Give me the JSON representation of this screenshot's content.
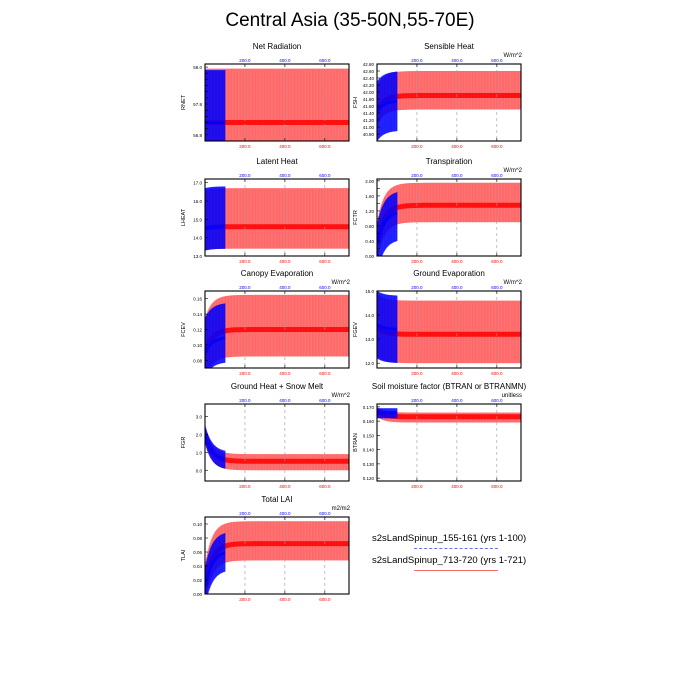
{
  "figure": {
    "title": "Central Asia (35-50N,55-70E)"
  },
  "colors": {
    "run1": "#0000ff",
    "run2": "#ff0000"
  },
  "legend": {
    "entries": [
      {
        "label": "s2sLandSpinup_155-161 (yrs 1-100)",
        "color": "#0000ff",
        "style": "dashed"
      },
      {
        "label": "s2sLandSpinup_713-720 (yrs 1-721)",
        "color": "#ff0000",
        "style": "solid"
      }
    ]
  },
  "chart_data": [
    {
      "type": "line",
      "title": "Net Radiation",
      "ylabel": "RNET",
      "units": "",
      "top_axis": {
        "ticks": [
          200,
          400,
          600
        ],
        "labels": [
          "200.0",
          "400.0",
          "600.0"
        ]
      },
      "bottom_axis": {
        "ticks": [
          200,
          400,
          600
        ],
        "labels": [
          "200.0",
          "400.0",
          "600.0"
        ]
      },
      "xlim": [
        0,
        721
      ],
      "ylim": [
        56.6,
        59.1
      ],
      "yticks": [
        56.8,
        57.0,
        57.2,
        57.4,
        57.6,
        57.8,
        58.0,
        58.2,
        58.4,
        58.6,
        58.8,
        59.0
      ],
      "ytick_labels": [
        "56.8",
        "",
        "",
        "",
        "",
        "57.8",
        "",
        "",
        "",
        "",
        "",
        "59.0"
      ],
      "grid_x": true,
      "series": [
        {
          "name": "s2sLandSpinup_155-161 (yrs 1-100)",
          "color": "#0000ff",
          "start_year": 1,
          "end_year": 100,
          "annual_mean": 57.2,
          "start_mean": 57.2,
          "seasonal_max": 58.9,
          "seasonal_min": 56.6
        },
        {
          "name": "s2sLandSpinup_713-720 (yrs 1-721)",
          "color": "#ff0000",
          "start_year": 1,
          "end_year": 721,
          "annual_mean": 57.2,
          "start_mean": 57.2,
          "seasonal_max": 58.95,
          "seasonal_min": 56.6
        }
      ]
    },
    {
      "type": "line",
      "title": "Sensible Heat",
      "ylabel": "FSH",
      "units": "W/m^2",
      "top_axis": {
        "ticks": [
          200,
          400,
          600
        ],
        "labels": [
          "200.0",
          "400.0",
          "600.0"
        ]
      },
      "bottom_axis": {
        "ticks": [
          200,
          400,
          600
        ],
        "labels": [
          "200.0",
          "400.0",
          "600.0"
        ]
      },
      "xlim": [
        0,
        721
      ],
      "ylim": [
        40.6,
        42.8
      ],
      "yticks": [
        40.8,
        41.0,
        41.2,
        41.4,
        41.6,
        41.8,
        42.0,
        42.2,
        42.4,
        42.6,
        42.8
      ],
      "ytick_labels": [
        "40.80",
        "41.00",
        "41.20",
        "41.40",
        "41.60",
        "41.80",
        "42.00",
        "42.20",
        "42.40",
        "42.60",
        "42.80"
      ],
      "grid_x": true,
      "series": [
        {
          "name": "s2sLandSpinup_155-161 (yrs 1-100)",
          "color": "#0000ff",
          "start_year": 1,
          "end_year": 100,
          "annual_mean": 41.75,
          "start_mean": 41.45,
          "seasonal_max": 42.6,
          "seasonal_min": 40.9
        },
        {
          "name": "s2sLandSpinup_713-720 (yrs 1-721)",
          "color": "#ff0000",
          "start_year": 1,
          "end_year": 721,
          "annual_mean": 41.9,
          "start_mean": 41.45,
          "seasonal_max": 42.6,
          "seasonal_min": 41.5
        }
      ]
    },
    {
      "type": "line",
      "title": "Latent Heat",
      "ylabel": "LHEAT",
      "units": "",
      "top_axis": {
        "ticks": [
          200,
          400,
          600
        ],
        "labels": [
          "200.0",
          "400.0",
          "600.0"
        ]
      },
      "bottom_axis": {
        "ticks": [
          200,
          400,
          600
        ],
        "labels": [
          "200.0",
          "400.0",
          "600.0"
        ]
      },
      "xlim": [
        0,
        721
      ],
      "ylim": [
        13.0,
        17.2
      ],
      "yticks": [
        13.0,
        14.0,
        15.0,
        16.0,
        17.0
      ],
      "ytick_labels": [
        "13.0",
        "14.0",
        "15.0",
        "16.0",
        "17.0"
      ],
      "grid_x": true,
      "series": [
        {
          "name": "s2sLandSpinup_155-161 (yrs 1-100)",
          "color": "#0000ff",
          "start_year": 1,
          "end_year": 100,
          "annual_mean": 14.6,
          "start_mean": 14.5,
          "seasonal_max": 16.8,
          "seasonal_min": 13.4
        },
        {
          "name": "s2sLandSpinup_713-720 (yrs 1-721)",
          "color": "#ff0000",
          "start_year": 1,
          "end_year": 721,
          "annual_mean": 14.6,
          "start_mean": 14.5,
          "seasonal_max": 16.7,
          "seasonal_min": 13.4
        }
      ]
    },
    {
      "type": "line",
      "title": "Transpiration",
      "ylabel": "FCTR",
      "units": "W/m^2",
      "top_axis": {
        "ticks": [
          200,
          400,
          600
        ],
        "labels": [
          "200.0",
          "400.0",
          "600.0"
        ]
      },
      "bottom_axis": {
        "ticks": [
          200,
          400,
          600
        ],
        "labels": [
          "200.0",
          "400.0",
          "600.0"
        ]
      },
      "xlim": [
        0,
        721
      ],
      "ylim": [
        0.0,
        2.05
      ],
      "yticks": [
        0.0,
        0.2,
        0.4,
        0.6,
        0.8,
        1.0,
        1.2,
        1.4,
        1.6,
        1.8,
        2.0
      ],
      "ytick_labels": [
        "0.00",
        "0.40",
        "0.80",
        "1.20",
        "1.60",
        "2.00"
      ],
      "ytick_label_values": [
        0.0,
        0.4,
        0.8,
        1.2,
        1.6,
        2.0
      ],
      "grid_x": true,
      "series": [
        {
          "name": "s2sLandSpinup_155-161 (yrs 1-100)",
          "color": "#0000ff",
          "start_year": 1,
          "end_year": 100,
          "annual_mean": 1.2,
          "start_mean": 0.3,
          "seasonal_max": 1.75,
          "seasonal_min": 0.45
        },
        {
          "name": "s2sLandSpinup_713-720 (yrs 1-721)",
          "color": "#ff0000",
          "start_year": 1,
          "end_year": 721,
          "annual_mean": 1.35,
          "start_mean": 0.3,
          "seasonal_max": 1.95,
          "seasonal_min": 0.9
        }
      ]
    },
    {
      "type": "line",
      "title": "Canopy Evaporation",
      "ylabel": "FCEV",
      "units": "W/m^2",
      "top_axis": {
        "ticks": [
          200,
          400,
          600
        ],
        "labels": [
          "200.0",
          "400.0",
          "600.0"
        ]
      },
      "bottom_axis": {
        "ticks": [
          200,
          400,
          600
        ],
        "labels": [
          "200.0",
          "400.0",
          "600.0"
        ]
      },
      "xlim": [
        0,
        721
      ],
      "ylim": [
        0.07,
        0.17
      ],
      "yticks": [
        0.08,
        0.1,
        0.12,
        0.14,
        0.16
      ],
      "ytick_labels": [
        "0.08",
        "0.10",
        "0.12",
        "0.14",
        "0.16"
      ],
      "grid_x": true,
      "series": [
        {
          "name": "s2sLandSpinup_155-161 (yrs 1-100)",
          "color": "#0000ff",
          "start_year": 1,
          "end_year": 100,
          "annual_mean": 0.11,
          "start_mean": 0.09,
          "seasonal_max": 0.155,
          "seasonal_min": 0.078
        },
        {
          "name": "s2sLandSpinup_713-720 (yrs 1-721)",
          "color": "#ff0000",
          "start_year": 1,
          "end_year": 721,
          "annual_mean": 0.12,
          "start_mean": 0.09,
          "seasonal_max": 0.165,
          "seasonal_min": 0.085
        }
      ]
    },
    {
      "type": "line",
      "title": "Ground Evaporation",
      "ylabel": "FGEV",
      "units": "W/m^2",
      "top_axis": {
        "ticks": [
          200,
          400,
          600
        ],
        "labels": [
          "200.0",
          "400.0",
          "600.0"
        ]
      },
      "bottom_axis": {
        "ticks": [
          200,
          400,
          600
        ],
        "labels": [
          "200.0",
          "400.0",
          "600.0"
        ]
      },
      "xlim": [
        0,
        721
      ],
      "ylim": [
        11.8,
        15.0
      ],
      "yticks": [
        12.0,
        13.0,
        14.0,
        15.0
      ],
      "ytick_labels": [
        "12.0",
        "13.0",
        "14.0",
        "15.0"
      ],
      "grid_x": true,
      "series": [
        {
          "name": "s2sLandSpinup_155-161 (yrs 1-100)",
          "color": "#0000ff",
          "start_year": 1,
          "end_year": 100,
          "annual_mean": 13.4,
          "start_mean": 13.6,
          "seasonal_max": 14.8,
          "seasonal_min": 12.0
        },
        {
          "name": "s2sLandSpinup_713-720 (yrs 1-721)",
          "color": "#ff0000",
          "start_year": 1,
          "end_year": 721,
          "annual_mean": 13.2,
          "start_mean": 13.5,
          "seasonal_max": 14.6,
          "seasonal_min": 12.0
        }
      ]
    },
    {
      "type": "line",
      "title": "Ground Heat + Snow Melt",
      "ylabel": "FGR",
      "units": "W/m^2",
      "top_axis": {
        "ticks": [
          200,
          400,
          600
        ],
        "labels": [
          "200.0",
          "400.0",
          "600.0"
        ]
      },
      "bottom_axis": {
        "ticks": [
          200,
          400,
          600
        ],
        "labels": [
          "200.0",
          "400.0",
          "600.0"
        ]
      },
      "xlim": [
        0,
        721
      ],
      "ylim": [
        -0.6,
        3.7
      ],
      "yticks": [
        0.0,
        1.0,
        2.0,
        3.0
      ],
      "ytick_labels": [
        "0.0",
        "1.0",
        "2.0",
        "3.0"
      ],
      "grid_x": true,
      "series": [
        {
          "name": "s2sLandSpinup_155-161 (yrs 1-100)",
          "color": "#0000ff",
          "start_year": 1,
          "end_year": 100,
          "annual_mean": 0.5,
          "start_mean": 2.0,
          "seasonal_max": 1.0,
          "seasonal_min": 0.0
        },
        {
          "name": "s2sLandSpinup_713-720 (yrs 1-721)",
          "color": "#ff0000",
          "start_year": 1,
          "end_year": 721,
          "annual_mean": 0.5,
          "start_mean": 2.0,
          "seasonal_max": 0.9,
          "seasonal_min": 0.0
        }
      ]
    },
    {
      "type": "line",
      "title": "Soil moisture factor (BTRAN or BTRANMN)",
      "ylabel": "BTRAN",
      "units": "unitless",
      "top_axis": {
        "ticks": [
          200,
          400,
          600
        ],
        "labels": [
          "200.0",
          "400.0",
          "600.0"
        ]
      },
      "bottom_axis": {
        "ticks": [
          200,
          400,
          600
        ],
        "labels": [
          "200.0",
          "400.0",
          "600.0"
        ]
      },
      "xlim": [
        0,
        721
      ],
      "ylim": [
        0.118,
        0.172
      ],
      "yticks": [
        0.12,
        0.13,
        0.14,
        0.15,
        0.16,
        0.17
      ],
      "ytick_labels": [
        "0.120",
        "0.130",
        "0.140",
        "0.150",
        "0.160",
        "0.170"
      ],
      "grid_x": true,
      "series": [
        {
          "name": "s2sLandSpinup_155-161 (yrs 1-100)",
          "color": "#0000ff",
          "start_year": 1,
          "end_year": 100,
          "annual_mean": 0.166,
          "start_mean": 0.166,
          "seasonal_max": 0.169,
          "seasonal_min": 0.162
        },
        {
          "name": "s2sLandSpinup_713-720 (yrs 1-721)",
          "color": "#ff0000",
          "start_year": 1,
          "end_year": 721,
          "annual_mean": 0.163,
          "start_mean": 0.167,
          "seasonal_max": 0.166,
          "seasonal_min": 0.159
        }
      ]
    },
    {
      "type": "line",
      "title": "Total LAI",
      "ylabel": "TLAI",
      "units": "m2/m2",
      "top_axis": {
        "ticks": [
          200,
          400,
          600
        ],
        "labels": [
          "200.0",
          "400.0",
          "600.0"
        ]
      },
      "bottom_axis": {
        "ticks": [
          200,
          400,
          600
        ],
        "labels": [
          "200.0",
          "400.0",
          "600.0"
        ]
      },
      "xlim": [
        0,
        721
      ],
      "ylim": [
        0.0,
        0.11
      ],
      "yticks": [
        0.0,
        0.02,
        0.04,
        0.06,
        0.08,
        0.1
      ],
      "ytick_labels": [
        "0.00",
        "0.02",
        "0.04",
        "0.06",
        "0.08",
        "0.10"
      ],
      "grid_x": true,
      "series": [
        {
          "name": "s2sLandSpinup_155-161 (yrs 1-100)",
          "color": "#0000ff",
          "start_year": 1,
          "end_year": 100,
          "annual_mean": 0.062,
          "start_mean": 0.01,
          "seasonal_max": 0.09,
          "seasonal_min": 0.035
        },
        {
          "name": "s2sLandSpinup_713-720 (yrs 1-721)",
          "color": "#ff0000",
          "start_year": 1,
          "end_year": 721,
          "annual_mean": 0.072,
          "start_mean": 0.01,
          "seasonal_max": 0.104,
          "seasonal_min": 0.048
        }
      ]
    }
  ]
}
